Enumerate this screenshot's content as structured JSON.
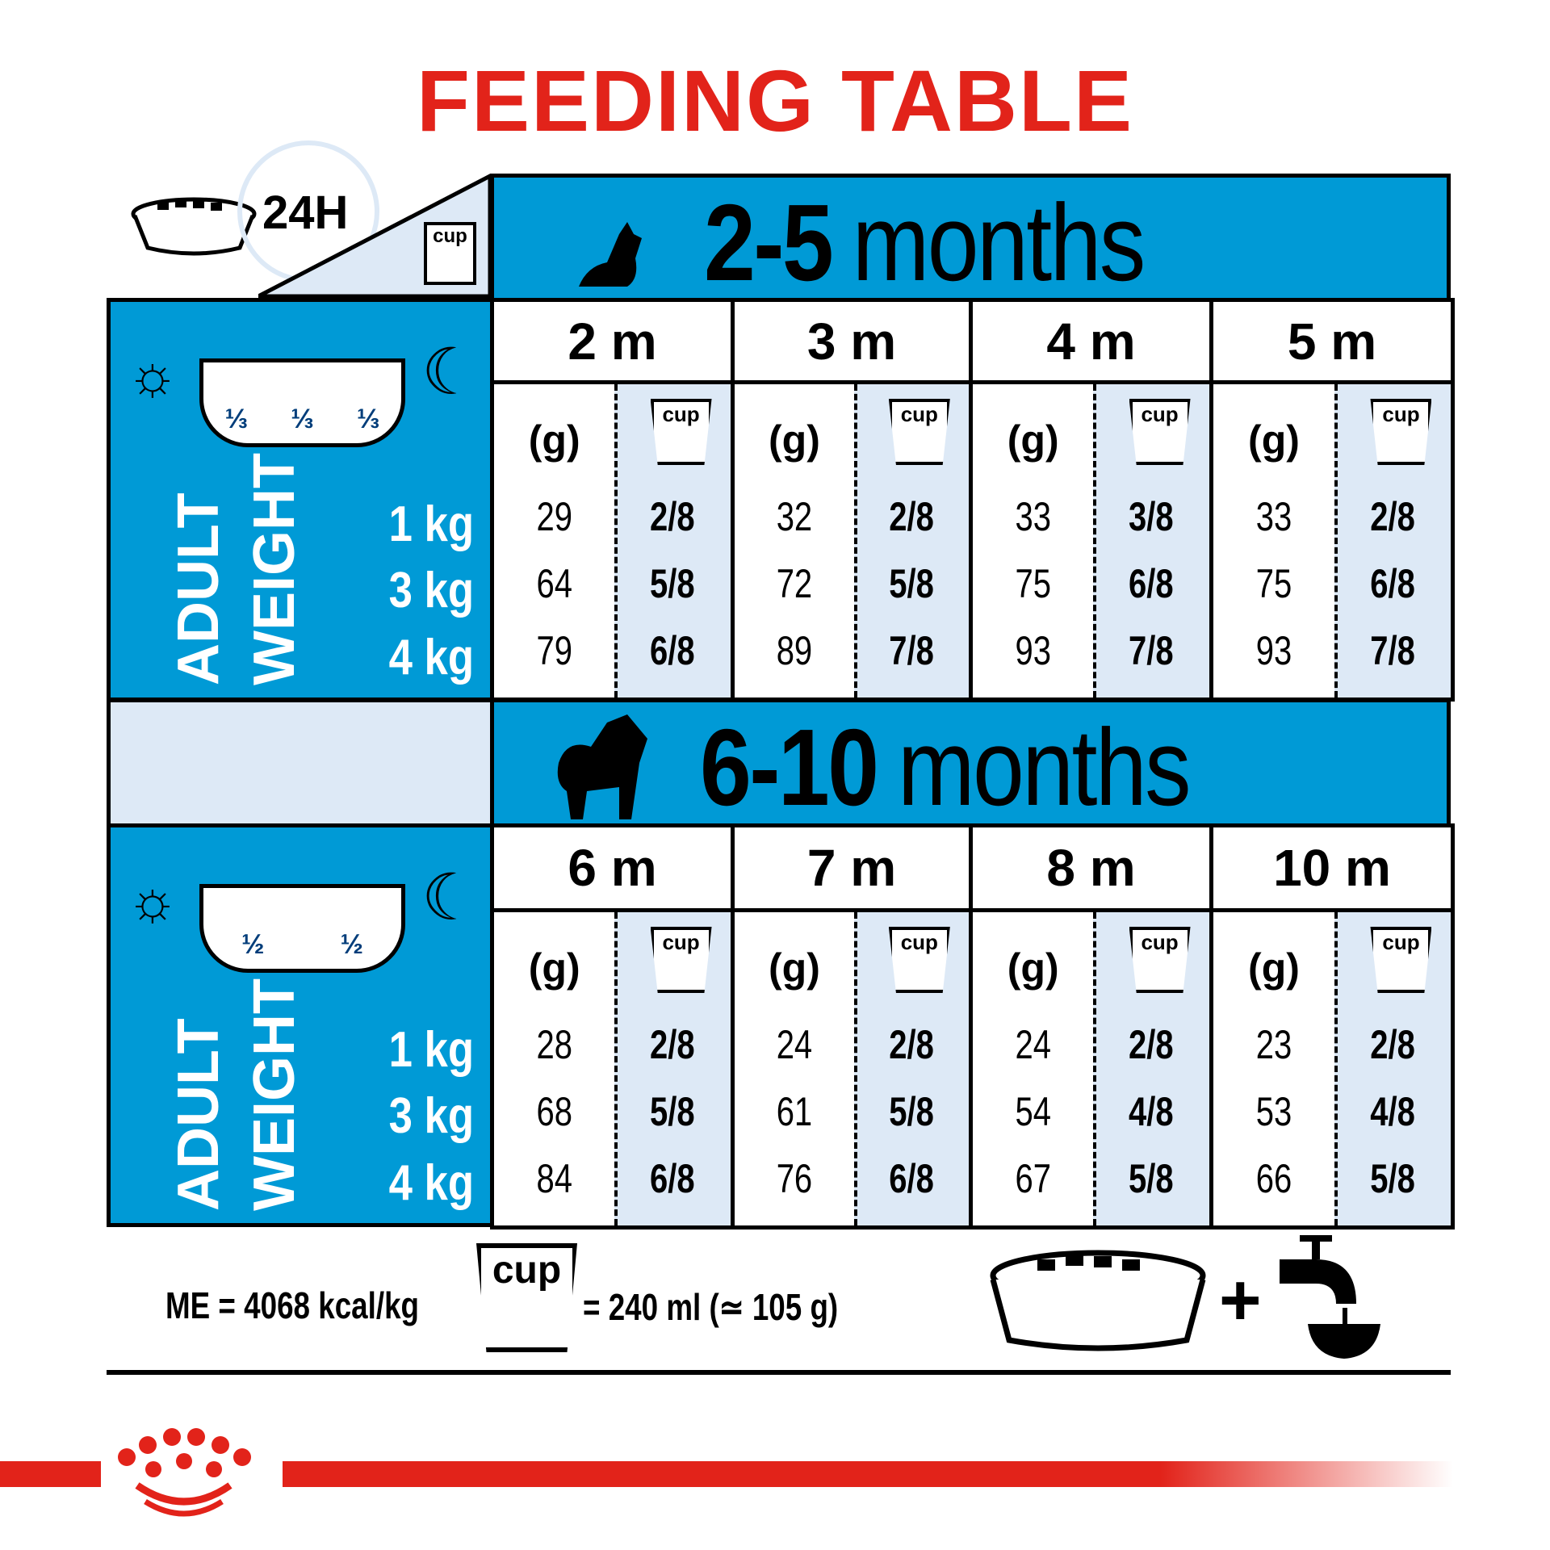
{
  "title": "FEEDING TABLE",
  "header_24h": "24H",
  "cup_label": "cup",
  "grams_label": "(g)",
  "weight_label": {
    "line1": "ADULT",
    "line2": "WEIGHT"
  },
  "weights": [
    "1 kg",
    "3 kg",
    "4 kg"
  ],
  "meals_1": [
    "⅓",
    "⅓",
    "⅓"
  ],
  "meals_2": [
    "½",
    "½"
  ],
  "colors": {
    "red": "#e2231a",
    "blue": "#009ad6",
    "light": "#dde9f6"
  },
  "sections": [
    {
      "age_bold": "2-5",
      "age_rest": "months",
      "months": [
        {
          "label": "2 m",
          "grams": [
            "29",
            "64",
            "79"
          ],
          "cups": [
            "2/8",
            "5/8",
            "6/8"
          ]
        },
        {
          "label": "3 m",
          "grams": [
            "32",
            "72",
            "89"
          ],
          "cups": [
            "2/8",
            "5/8",
            "7/8"
          ]
        },
        {
          "label": "4 m",
          "grams": [
            "33",
            "75",
            "93"
          ],
          "cups": [
            "3/8",
            "6/8",
            "7/8"
          ]
        },
        {
          "label": "5 m",
          "grams": [
            "33",
            "75",
            "93"
          ],
          "cups": [
            "2/8",
            "6/8",
            "7/8"
          ]
        }
      ]
    },
    {
      "age_bold": "6-10",
      "age_rest": "months",
      "months": [
        {
          "label": "6 m",
          "grams": [
            "28",
            "68",
            "84"
          ],
          "cups": [
            "2/8",
            "5/8",
            "6/8"
          ]
        },
        {
          "label": "7 m",
          "grams": [
            "24",
            "61",
            "76"
          ],
          "cups": [
            "2/8",
            "5/8",
            "6/8"
          ]
        },
        {
          "label": "8 m",
          "grams": [
            "24",
            "54",
            "67"
          ],
          "cups": [
            "2/8",
            "4/8",
            "5/8"
          ]
        },
        {
          "label": "10 m",
          "grams": [
            "23",
            "53",
            "66"
          ],
          "cups": [
            "2/8",
            "4/8",
            "5/8"
          ]
        }
      ]
    }
  ],
  "footer": {
    "energy": "ME = 4068 kcal/kg",
    "cup_equiv": "= 240 ml (≃ 105 g)",
    "plus": "+"
  }
}
